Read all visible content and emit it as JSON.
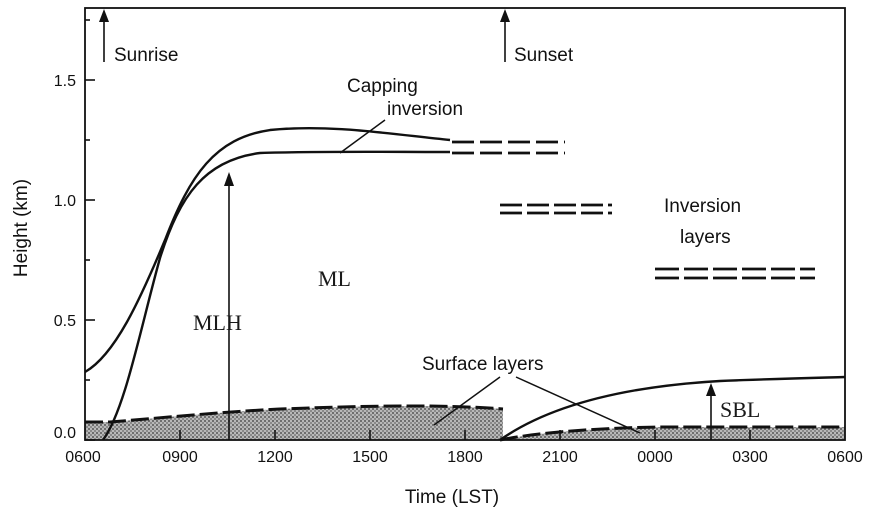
{
  "diagram": {
    "xaxis": {
      "title": "Time (LST)",
      "ticks": [
        "0600",
        "0900",
        "1200",
        "1500",
        "1800",
        "2100",
        "0000",
        "0300",
        "0600"
      ]
    },
    "yaxis": {
      "title": "Height (km)",
      "ticks": [
        "0.0",
        "0.5",
        "1.0",
        "1.5"
      ]
    },
    "labels": {
      "sunrise": "Sunrise",
      "sunset": "Sunset",
      "capping_inversion_line1": "Capping",
      "capping_inversion_line2": "inversion",
      "inversion_layers_line1": "Inversion",
      "inversion_layers_line2": "layers",
      "ml": "ML",
      "mlh": "MLH",
      "surface_layers": "Surface layers",
      "sbl": "SBL"
    },
    "colors": {
      "ink": "#111111",
      "shading": "#8c8c8c"
    }
  }
}
